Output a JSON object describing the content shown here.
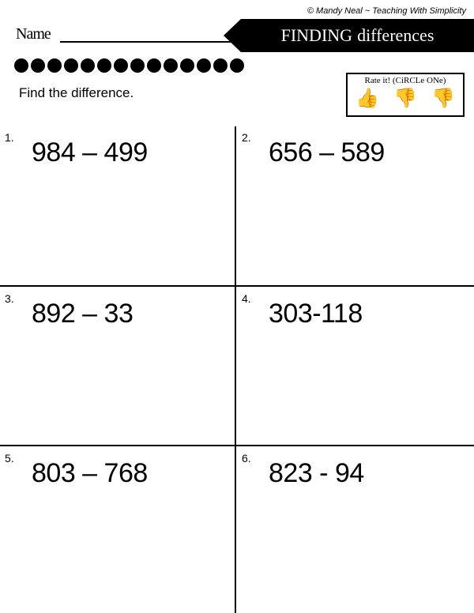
{
  "copyright": "© Mandy Neal ~ Teaching With Simplicity",
  "name_label": "Name",
  "title_part1": "FINDING",
  "title_part2": "diffeRENCeS",
  "instruction": "Find the difference.",
  "rate_label": "Rate it! (CiRCLe ONe)",
  "dot_count": 14,
  "problems": [
    {
      "num": "1.",
      "text": "984 – 499"
    },
    {
      "num": "2.",
      "text": "656 – 589"
    },
    {
      "num": "3.",
      "text": "892 – 33"
    },
    {
      "num": "4.",
      "text": "303-118"
    },
    {
      "num": "5.",
      "text": "803 – 768"
    },
    {
      "num": "6.",
      "text": "823 - 94"
    }
  ],
  "colors": {
    "bg": "#ffffff",
    "fg": "#000000"
  }
}
